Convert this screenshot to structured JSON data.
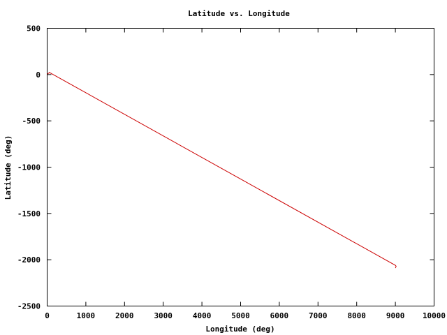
{
  "chart_data": {
    "type": "line",
    "title": "Latitude vs. Longitude",
    "xlabel": "Longitude (deg)",
    "ylabel": "Latitude (deg)",
    "xlim": [
      0,
      10000
    ],
    "ylim": [
      -2500,
      500
    ],
    "xticks": [
      0,
      1000,
      2000,
      3000,
      4000,
      5000,
      6000,
      7000,
      8000,
      9000,
      10000
    ],
    "yticks": [
      500,
      0,
      -500,
      -1000,
      -1500,
      -2000,
      -2500
    ],
    "grid": false,
    "legend": "none",
    "series": [
      {
        "color": "#cc0000",
        "x": [
          0,
          60,
          50,
          9000,
          9020,
          9000
        ],
        "y": [
          5,
          20,
          25,
          -2060,
          -2070,
          -2090
        ]
      }
    ]
  }
}
